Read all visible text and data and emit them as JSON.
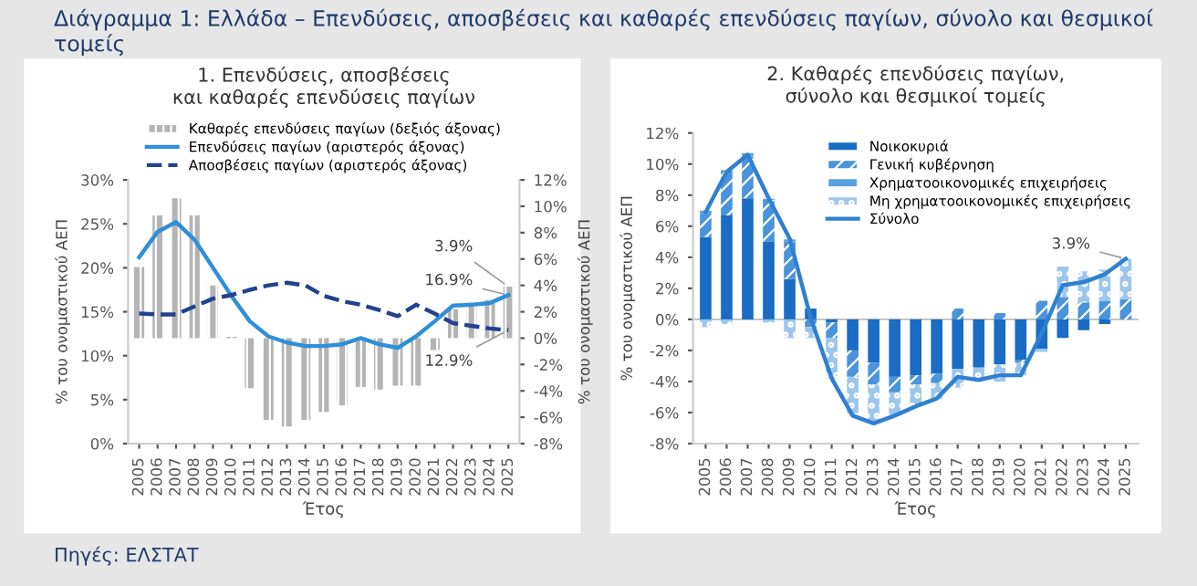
{
  "chart_data": [
    {
      "type": "line",
      "title": "Διάγραμμα 1: Ελλάδα – Επενδύσεις, αποσβέσεις και καθαρές επενδύσεις παγίων, σύνολο και θεσμικοί τομείς",
      "subtitle": "1. Επενδύσεις, αποσβέσεις\nκαι καθαρές επενδύσεις παγίων",
      "xlabel": "Έτος",
      "ylabel": "% του ονομαστικού ΑΕΠ",
      "y2label": "% του ονομαστικού ΑΕΠ",
      "categories": [
        "2005",
        "2006",
        "2007",
        "2008",
        "2009",
        "2010",
        "2011",
        "2012",
        "2013",
        "2014",
        "2015",
        "2016",
        "2017",
        "2018",
        "2019",
        "2020",
        "2021",
        "2022",
        "2023",
        "2024",
        "2025"
      ],
      "series": [
        {
          "name": "Καθαρές επενδύσεις παγίων (δεξιός άξονας)",
          "type": "bar",
          "axis": "y2",
          "color": "#b4b4b4",
          "values": [
            5.4,
            9.3,
            10.6,
            9.3,
            4.0,
            0.1,
            -3.8,
            -6.2,
            -6.7,
            -6.2,
            -5.6,
            -5.1,
            -3.7,
            -3.9,
            -3.6,
            -3.6,
            -0.9,
            2.2,
            2.4,
            2.9,
            3.9
          ],
          "value_labels": [
            null,
            null,
            null,
            null,
            null,
            null,
            null,
            null,
            null,
            null,
            null,
            null,
            null,
            null,
            null,
            null,
            null,
            null,
            null,
            null,
            "3.9%"
          ]
        },
        {
          "name": "Επενδύσεις παγίων (αριστερός άξονας)",
          "type": "line",
          "color": "#2f8fd8",
          "line_style": "solid",
          "values": [
            21.2,
            24.1,
            25.2,
            23.2,
            20.0,
            16.8,
            13.9,
            12.2,
            11.5,
            11.1,
            11.1,
            11.3,
            12.0,
            11.3,
            10.9,
            12.2,
            13.9,
            15.7,
            15.8,
            16.0,
            16.9
          ],
          "value_labels": [
            null,
            null,
            null,
            null,
            null,
            null,
            null,
            null,
            null,
            null,
            null,
            null,
            null,
            null,
            null,
            null,
            null,
            null,
            null,
            null,
            "16.9%"
          ]
        },
        {
          "name": "Αποσβέσεις παγίων (αριστερός άξονας)",
          "type": "line",
          "color": "#24418f",
          "line_style": "dashed",
          "values": [
            14.8,
            14.7,
            14.7,
            15.6,
            16.5,
            16.9,
            17.5,
            18.0,
            18.3,
            18.0,
            16.8,
            16.2,
            15.8,
            15.2,
            14.5,
            15.8,
            14.8,
            13.7,
            13.4,
            13.1,
            12.9
          ],
          "value_labels": [
            null,
            null,
            null,
            null,
            null,
            null,
            null,
            null,
            null,
            null,
            null,
            null,
            null,
            null,
            null,
            null,
            null,
            null,
            null,
            null,
            "12.9%"
          ]
        }
      ],
      "ylim": [
        0,
        30
      ],
      "yticks": [
        {
          "value": 0,
          "label": "0%"
        },
        {
          "value": 5,
          "label": "5%"
        },
        {
          "value": 10,
          "label": "10%"
        },
        {
          "value": 15,
          "label": "15%"
        },
        {
          "value": 20,
          "label": "20%"
        },
        {
          "value": 25,
          "label": "25%"
        },
        {
          "value": 30,
          "label": "30%"
        }
      ],
      "y2lim": [
        -8,
        12
      ],
      "y2ticks": [
        {
          "value": -8,
          "label": "-8%"
        },
        {
          "value": -6,
          "label": "-6%"
        },
        {
          "value": -4,
          "label": "-4%"
        },
        {
          "value": -2,
          "label": "-2%"
        },
        {
          "value": 0,
          "label": "0%"
        },
        {
          "value": 2,
          "label": "2%"
        },
        {
          "value": 4,
          "label": "4%"
        },
        {
          "value": 6,
          "label": "6%"
        },
        {
          "value": 8,
          "label": "8%"
        },
        {
          "value": 10,
          "label": "10%"
        },
        {
          "value": 12,
          "label": "12%"
        }
      ],
      "legend": "top",
      "grid": false,
      "annotations": [
        "Πηγές: ΕΛΣΤΑΤ"
      ]
    },
    {
      "type": "bar",
      "stacked": true,
      "subtitle": "2. Καθαρές επενδύσεις παγίων,\nσύνολο και θεσμικοί τομείς",
      "xlabel": "Έτος",
      "ylabel": "% του ονομαστικού ΑΕΠ",
      "categories": [
        "2005",
        "2006",
        "2007",
        "2008",
        "2009",
        "2010",
        "2011",
        "2012",
        "2013",
        "2014",
        "2015",
        "2016",
        "2017",
        "2018",
        "2019",
        "2020",
        "2021",
        "2022",
        "2023",
        "2024",
        "2025"
      ],
      "series": [
        {
          "name": "Νοικοκυριά",
          "color": "#1a6cc4",
          "values": [
            5.3,
            6.7,
            7.8,
            5.0,
            2.6,
            0.7,
            -0.2,
            -2.0,
            -2.8,
            -3.7,
            -3.6,
            -3.5,
            -3.2,
            -3.1,
            -2.9,
            -2.6,
            -1.9,
            -1.2,
            -0.7,
            -0.3,
            0.0
          ]
        },
        {
          "name": "Γενική κυβέρνηση",
          "color": "#4a94dc",
          "values": [
            1.5,
            2.9,
            2.7,
            2.7,
            2.4,
            -0.5,
            -1.0,
            -1.7,
            -1.4,
            -1.0,
            -0.6,
            -0.6,
            0.7,
            0.0,
            0.4,
            -0.2,
            1.2,
            1.4,
            1.1,
            1.2,
            1.3
          ]
        },
        {
          "name": "Χρηματοοικονομικές επιχειρήσεις",
          "color": "#5aa0e0",
          "values": [
            0.2,
            null,
            0.2,
            0.2,
            0.2,
            0.0,
            0.0,
            0.0,
            0.0,
            0.0,
            0.0,
            0.0,
            0.0,
            0.0,
            0.0,
            0.0,
            0.0,
            0.0,
            0.0,
            0.0,
            0.0
          ]
        },
        {
          "name": "Μη χρηματοοικονομικές επιχειρήσεις",
          "color": "#9cc6ee",
          "values": [
            -0.5,
            -0.3,
            0.0,
            -0.2,
            -1.2,
            -0.7,
            -2.6,
            -2.5,
            -2.5,
            -1.5,
            -1.4,
            -1.0,
            -1.2,
            -0.8,
            -1.1,
            -0.8,
            -0.2,
            2.0,
            2.0,
            2.0,
            2.6
          ]
        },
        {
          "name": "Σύνολο",
          "type": "line",
          "color": "#2f80d0",
          "values": [
            6.9,
            9.5,
            10.6,
            7.8,
            5.2,
            0.1,
            -3.8,
            -6.2,
            -6.7,
            -6.2,
            -5.6,
            -5.1,
            -3.7,
            -3.9,
            -3.6,
            -3.6,
            -0.9,
            2.2,
            2.4,
            2.9,
            3.9
          ],
          "value_labels": [
            null,
            null,
            null,
            null,
            null,
            null,
            null,
            null,
            null,
            null,
            null,
            null,
            null,
            null,
            null,
            null,
            null,
            null,
            null,
            null,
            "3.9%"
          ]
        }
      ],
      "ylim": [
        -8,
        12
      ],
      "yticks": [
        {
          "value": -8,
          "label": "-8%"
        },
        {
          "value": -6,
          "label": "-6%"
        },
        {
          "value": -4,
          "label": "-4%"
        },
        {
          "value": -2,
          "label": "-2%"
        },
        {
          "value": 0,
          "label": "0%"
        },
        {
          "value": 2,
          "label": "2%"
        },
        {
          "value": 4,
          "label": "4%"
        },
        {
          "value": 6,
          "label": "6%"
        },
        {
          "value": 8,
          "label": "8%"
        },
        {
          "value": 10,
          "label": "10%"
        },
        {
          "value": 12,
          "label": "12%"
        }
      ],
      "ref_lines": [
        {
          "axis": "y",
          "value": 0,
          "color": "#bbbbbb"
        }
      ],
      "legend": "top right",
      "grid": false
    }
  ]
}
